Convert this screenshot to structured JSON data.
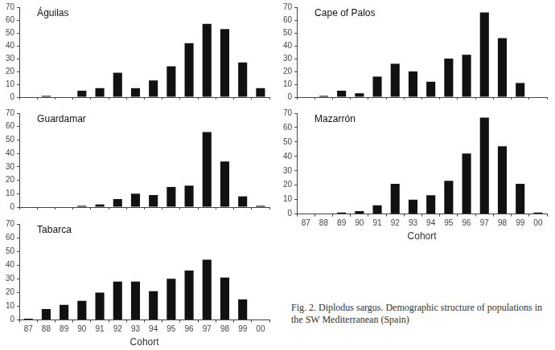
{
  "caption": "Fig. 2. Diplodus sargus. Demographic structure of populations in the SW Mediterranean (Spain)",
  "chart_data": [
    {
      "type": "bar",
      "title": "Águilas",
      "categories": [
        "87",
        "88",
        "89",
        "90",
        "91",
        "92",
        "93",
        "94",
        "95",
        "96",
        "97",
        "98",
        "99",
        "00"
      ],
      "values": [
        0,
        1,
        0,
        5,
        7,
        19,
        7,
        13,
        24,
        42,
        57,
        53,
        27,
        7
      ],
      "color": "#111111",
      "ylim": [
        0,
        70
      ],
      "yticks": [
        0,
        10,
        20,
        30,
        40,
        50,
        60,
        70
      ],
      "grid": false,
      "tick_labels": "y"
    },
    {
      "type": "bar",
      "title": "Cape of Palos",
      "categories": [
        "87",
        "88",
        "89",
        "90",
        "91",
        "92",
        "93",
        "94",
        "95",
        "96",
        "97",
        "98",
        "99",
        "00"
      ],
      "values": [
        0,
        1,
        5,
        3,
        16,
        26,
        20,
        12,
        30,
        33,
        66,
        46,
        11,
        0
      ],
      "color": "#111111",
      "ylim": [
        0,
        70
      ],
      "yticks": [
        0,
        10,
        20,
        30,
        40,
        50,
        60,
        70
      ],
      "grid": false,
      "tick_labels": "y"
    },
    {
      "type": "bar",
      "title": "Guardamar",
      "categories": [
        "87",
        "88",
        "89",
        "90",
        "91",
        "92",
        "93",
        "94",
        "95",
        "96",
        "97",
        "98",
        "99",
        "00"
      ],
      "values": [
        0,
        0,
        0,
        1,
        2,
        6,
        10,
        9,
        15,
        16,
        56,
        34,
        8,
        1
      ],
      "color": "#111111",
      "ylim": [
        0,
        70
      ],
      "yticks": [
        0,
        10,
        20,
        30,
        40,
        50,
        60,
        70
      ],
      "grid": false,
      "tick_labels": "y"
    },
    {
      "type": "bar",
      "title": "Mazarrón",
      "xlabel": "Cohort",
      "categories": [
        "87",
        "88",
        "89",
        "90",
        "91",
        "92",
        "93",
        "94",
        "95",
        "96",
        "97",
        "98",
        "99",
        "00"
      ],
      "values": [
        0,
        0,
        1,
        2,
        6,
        21,
        10,
        13,
        23,
        42,
        67,
        47,
        21,
        1
      ],
      "color": "#111111",
      "ylim": [
        0,
        70
      ],
      "yticks": [
        0,
        10,
        20,
        30,
        40,
        50,
        60,
        70
      ],
      "grid": false
    },
    {
      "type": "bar",
      "title": "Tabarca",
      "xlabel": "Cohort",
      "categories": [
        "87",
        "88",
        "89",
        "90",
        "91",
        "92",
        "93",
        "94",
        "95",
        "96",
        "97",
        "98",
        "99",
        "00"
      ],
      "values": [
        1,
        8,
        11,
        14,
        20,
        28,
        28,
        21,
        30,
        36,
        44,
        31,
        15,
        0
      ],
      "color": "#111111",
      "ylim": [
        0,
        70
      ],
      "yticks": [
        0,
        10,
        20,
        30,
        40,
        50,
        60,
        70
      ],
      "grid": false
    }
  ]
}
